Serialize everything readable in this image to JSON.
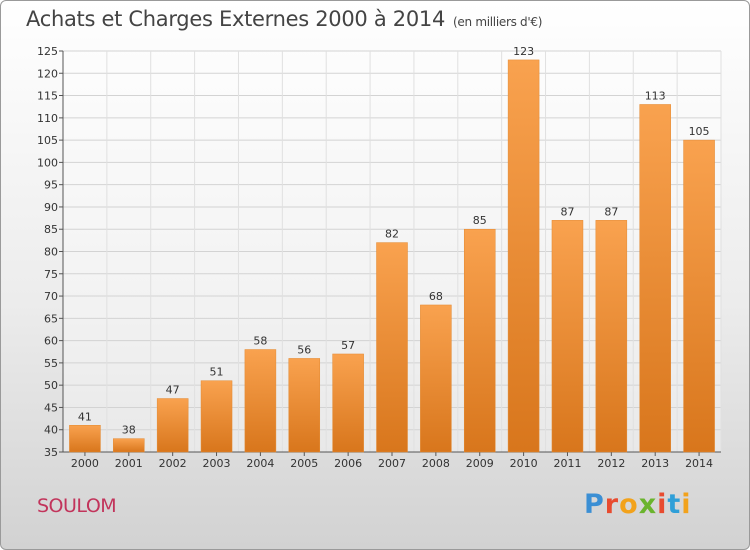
{
  "header": {
    "title": "Achats et Charges Externes 2000 à 2014",
    "unit": "(en milliers d'€)"
  },
  "footer": {
    "commune": "SOULOM",
    "brand": "Proxiti"
  },
  "colors": {
    "bar_light": "#f9a24f",
    "bar_dark": "#d8761c",
    "commune": "#c2345b",
    "brand_letters": [
      "#3b8fd4",
      "#e84b2f",
      "#f2a21b",
      "#6ab42d",
      "#e84b2f",
      "#2f9fd8",
      "#f2a21b"
    ]
  },
  "chart_data": {
    "type": "bar",
    "title": "Achats et Charges Externes 2000 à 2014",
    "categories": [
      "2000",
      "2001",
      "2002",
      "2003",
      "2004",
      "2005",
      "2006",
      "2007",
      "2008",
      "2009",
      "2010",
      "2011",
      "2012",
      "2013",
      "2014"
    ],
    "values": [
      41,
      38,
      47,
      51,
      58,
      56,
      57,
      82,
      68,
      85,
      123,
      87,
      87,
      113,
      105
    ],
    "ylim": [
      35,
      125
    ],
    "yticks": [
      35,
      40,
      45,
      50,
      55,
      60,
      65,
      70,
      75,
      80,
      85,
      90,
      95,
      100,
      105,
      110,
      115,
      120,
      125
    ],
    "grid": true,
    "xlabel": "",
    "ylabel": ""
  }
}
